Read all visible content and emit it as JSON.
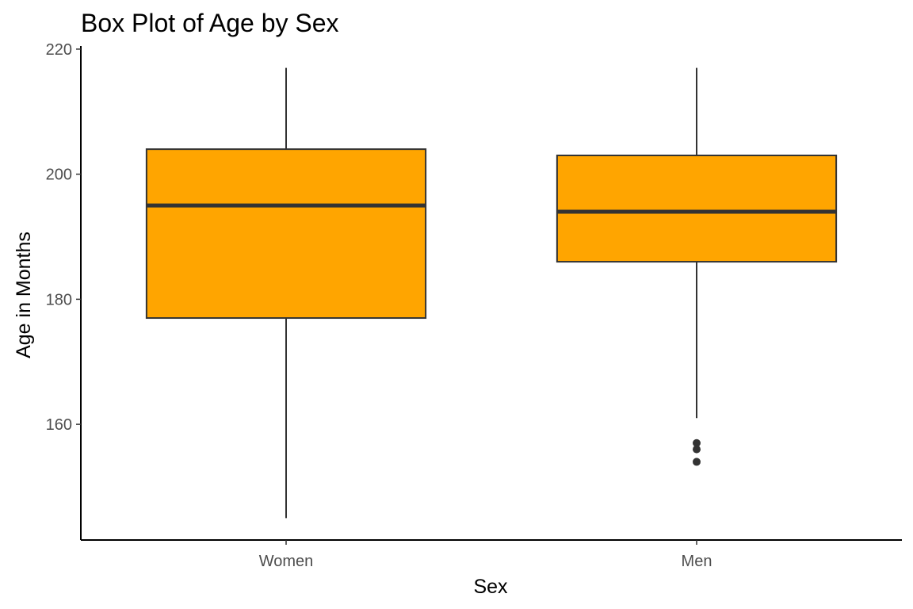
{
  "chart_data": {
    "type": "box",
    "title": "Box Plot of Age by Sex",
    "xlabel": "Sex",
    "ylabel": "Age in Months",
    "ylim": [
      141.5,
      220.5
    ],
    "yticks": [
      160,
      180,
      200,
      220
    ],
    "categories": [
      "Women",
      "Men"
    ],
    "boxes": [
      {
        "category": "Women",
        "whisker_low": 145,
        "q1": 177,
        "median": 195,
        "q3": 204,
        "whisker_high": 217,
        "outliers": []
      },
      {
        "category": "Men",
        "whisker_low": 161,
        "q1": 186,
        "median": 194,
        "q3": 203,
        "whisker_high": 217,
        "outliers": [
          157,
          156,
          154
        ]
      }
    ],
    "box_fill": "#ffa500",
    "line_color": "#333333",
    "grid": false,
    "legend": "none"
  }
}
